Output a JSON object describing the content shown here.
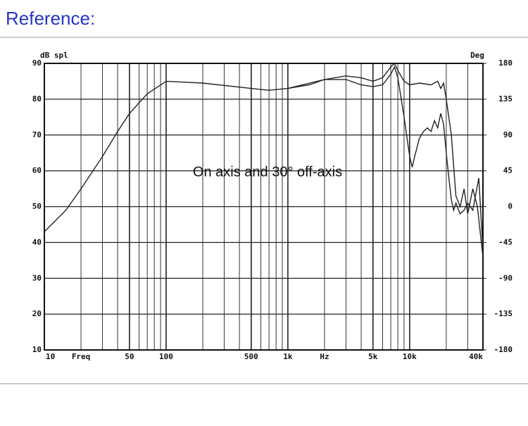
{
  "header": "Reference:",
  "chart_data": {
    "type": "line",
    "ylabel": "dB spl",
    "y2label": "Deg",
    "xlabel_parts": [
      "Freq",
      "Hz"
    ],
    "annotation": "On axis and 30° off-axis",
    "xscale": "log",
    "xlim": [
      10,
      40000
    ],
    "xticks": [
      10,
      50,
      100,
      500,
      {
        "value": 1000,
        "label": "1k"
      },
      {
        "value": 5000,
        "label": "5k"
      },
      {
        "value": 10000,
        "label": "10k"
      },
      {
        "value": 40000,
        "label": "40k"
      }
    ],
    "xminorticks": [
      20,
      30,
      40,
      60,
      70,
      80,
      90,
      200,
      300,
      400,
      600,
      700,
      800,
      900,
      2000,
      3000,
      4000,
      6000,
      7000,
      8000,
      9000,
      20000,
      30000
    ],
    "ylim": [
      10,
      90
    ],
    "yticks": [
      10,
      20,
      30,
      40,
      50,
      60,
      70,
      80,
      90
    ],
    "y2lim": [
      -180,
      180
    ],
    "y2ticks": [
      -180,
      -135,
      -90,
      -45,
      0,
      45,
      90,
      135,
      180
    ],
    "grid": true,
    "series": [
      {
        "color": "#222222",
        "x": [
          10,
          15,
          20,
          30,
          40,
          50,
          70,
          100,
          200,
          500,
          700,
          1000,
          1500,
          2000,
          3000,
          4000,
          5000,
          6000,
          7000,
          7500,
          8000,
          9000,
          10000,
          12000,
          15000,
          17000,
          18000,
          19000,
          20000,
          22000,
          24000,
          26000,
          28000,
          30000,
          33000,
          36000,
          40000
        ],
        "values": [
          43,
          49,
          55,
          64,
          71,
          76,
          81.5,
          85,
          84.5,
          83,
          82.5,
          83,
          84,
          85.5,
          86.5,
          86,
          85,
          86,
          89,
          90,
          88,
          85,
          84,
          84.5,
          84,
          85,
          83,
          84.5,
          80,
          70,
          53,
          50,
          55,
          48,
          55,
          50,
          36
        ]
      },
      {
        "color": "#222222",
        "x": [
          1000,
          2000,
          3000,
          4000,
          5000,
          6000,
          7000,
          7500,
          8000,
          9000,
          10000,
          10500,
          11000,
          12000,
          13000,
          14000,
          15000,
          16000,
          17000,
          18000,
          19000,
          20000,
          21000,
          22000,
          23000,
          24000,
          26000,
          28000,
          30000,
          33000,
          37000,
          40000
        ],
        "values": [
          83,
          85.5,
          85.5,
          84,
          83.5,
          84,
          87,
          89,
          86,
          75,
          64,
          61,
          64,
          69,
          71,
          72,
          71,
          74,
          72,
          76,
          73,
          65,
          58,
          52,
          49,
          51,
          48,
          49,
          51,
          49,
          58,
          38
        ]
      }
    ]
  }
}
